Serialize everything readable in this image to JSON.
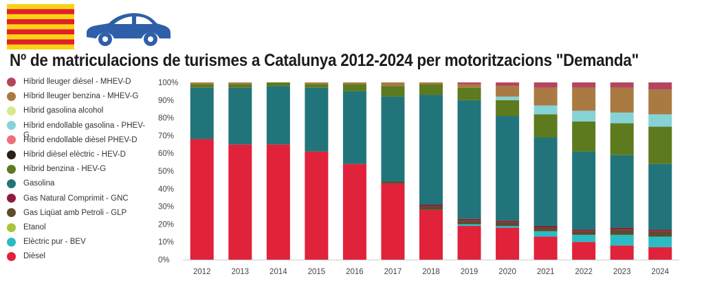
{
  "header": {
    "flag_icon": "catalan-flag-icon",
    "car_icon": "car-icon",
    "title": "Nº de matriculacions de turismes a Catalunya 2012-2024 per motoritzacions \"Demanda\""
  },
  "colors": {
    "flag_yellow": "#fcd116",
    "flag_red": "#e0202a",
    "car_blue": "#2f5fa8"
  },
  "chart_data": {
    "type": "bar",
    "stacked": true,
    "percent": true,
    "categories": [
      "2012",
      "2013",
      "2014",
      "2015",
      "2016",
      "2017",
      "2018",
      "2019",
      "2020",
      "2021",
      "2022",
      "2023",
      "2024"
    ],
    "ylim": [
      0,
      100
    ],
    "yticks": [
      "0%",
      "10%",
      "20%",
      "30%",
      "40%",
      "50%",
      "60%",
      "70%",
      "80%",
      "90%",
      "100%"
    ],
    "grid": false,
    "legend_position": "left",
    "series": [
      {
        "name": "Dièsel",
        "color": "#e0223a",
        "values": [
          68,
          65,
          65,
          61,
          54,
          43,
          28,
          19,
          18,
          13,
          10,
          8,
          7
        ]
      },
      {
        "name": "Elèctric pur - BEV",
        "color": "#2bbcc3",
        "values": [
          0,
          0,
          0,
          0,
          0,
          0,
          0,
          1,
          1,
          3,
          4,
          6,
          6
        ]
      },
      {
        "name": "Etanol",
        "color": "#a8c43a",
        "values": [
          0,
          0,
          0,
          0,
          0,
          0,
          0,
          0,
          0,
          0,
          0,
          0,
          0
        ]
      },
      {
        "name": "Gas Liqüat amb Petroli - GLP",
        "color": "#5e4a2e",
        "values": [
          0,
          0,
          0,
          0,
          0,
          1,
          2,
          2,
          2,
          2,
          2,
          3,
          3
        ]
      },
      {
        "name": "Gas Natural Comprimit - GNC",
        "color": "#8c1d3c",
        "values": [
          0,
          0,
          0,
          0,
          0,
          0,
          1,
          1,
          1,
          1,
          1,
          1,
          1
        ]
      },
      {
        "name": "Gasolina",
        "color": "#21757a",
        "values": [
          29,
          32,
          33,
          36,
          41,
          48,
          62,
          67,
          59,
          50,
          44,
          41,
          37
        ]
      },
      {
        "name": "Híbrid benzina - HEV-G",
        "color": "#5d7a1f",
        "values": [
          2,
          2,
          2,
          2,
          4,
          6,
          6,
          7,
          9,
          13,
          17,
          18,
          21
        ]
      },
      {
        "name": "Híbrid dièsel elèctric - HEV-D",
        "color": "#2b1f16",
        "values": [
          0,
          0,
          0,
          0,
          0,
          0,
          0,
          0,
          0,
          0,
          0,
          0,
          0
        ]
      },
      {
        "name": "Híbrid endollable dièsel PHEV-D",
        "color": "#ee6f7a",
        "values": [
          0,
          0,
          0,
          0,
          0,
          0,
          0,
          0,
          0,
          0,
          0,
          0,
          0
        ]
      },
      {
        "name": "Híbrid endollable gasolina - PHEV-G",
        "color": "#86d3d6",
        "values": [
          0,
          0,
          0,
          0,
          0,
          0,
          0,
          0,
          2,
          5,
          6,
          6,
          7
        ]
      },
      {
        "name": "Híbrid gasolina alcohol",
        "color": "#d6e98a",
        "values": [
          0,
          0,
          0,
          0,
          0,
          0,
          0,
          0,
          0,
          0,
          0,
          0,
          0
        ]
      },
      {
        "name": "Híbrid lleuger benzina - MHEV-G",
        "color": "#a97a42",
        "values": [
          1,
          1,
          0,
          1,
          1,
          2,
          1,
          2,
          6,
          10,
          13,
          14,
          14
        ]
      },
      {
        "name": "Híbrid lleuger dièsel - MHEV-D",
        "color": "#b5455f",
        "values": [
          0,
          0,
          0,
          0,
          0,
          0,
          0,
          1,
          2,
          3,
          3,
          3,
          4
        ]
      }
    ]
  }
}
